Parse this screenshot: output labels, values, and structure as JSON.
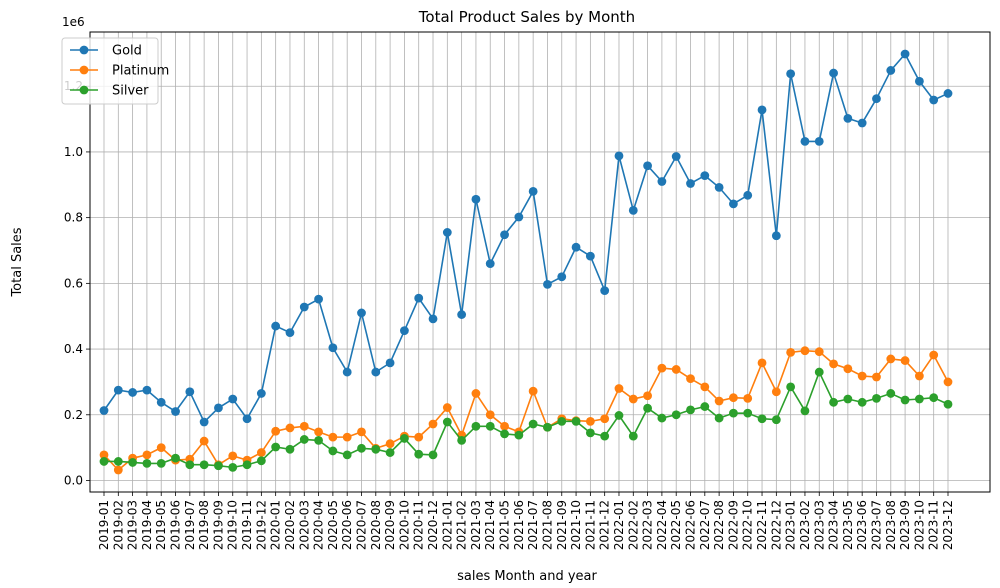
{
  "chart_data": {
    "type": "line",
    "title": "Total Product Sales by Month",
    "xlabel": "sales Month and year",
    "ylabel": "Total Sales",
    "y_scale_label": "1e6",
    "ylim": [
      -0.035,
      1.365
    ],
    "y_ticks": [
      0.0,
      0.2,
      0.4,
      0.6,
      0.8,
      1.0,
      1.2
    ],
    "y_tick_labels": [
      "0.0",
      "0.2",
      "0.4",
      "0.6",
      "0.8",
      "1.0",
      "1.2"
    ],
    "grid": true,
    "legend_position": "top-left",
    "categories": [
      "2019-01",
      "2019-02",
      "2019-03",
      "2019-04",
      "2019-05",
      "2019-06",
      "2019-07",
      "2019-08",
      "2019-09",
      "2019-10",
      "2019-11",
      "2019-12",
      "2020-01",
      "2020-02",
      "2020-03",
      "2020-04",
      "2020-05",
      "2020-06",
      "2020-07",
      "2020-08",
      "2020-09",
      "2020-10",
      "2020-11",
      "2020-12",
      "2021-01",
      "2021-02",
      "2021-03",
      "2021-04",
      "2021-05",
      "2021-06",
      "2021-07",
      "2021-08",
      "2021-09",
      "2021-10",
      "2021-11",
      "2021-12",
      "2022-01",
      "2022-02",
      "2022-03",
      "2022-04",
      "2022-05",
      "2022-06",
      "2022-07",
      "2022-08",
      "2022-09",
      "2022-10",
      "2022-11",
      "2022-12",
      "2023-01",
      "2023-02",
      "2023-03",
      "2023-04",
      "2023-05",
      "2023-06",
      "2023-07",
      "2023-08",
      "2023-09",
      "2023-10",
      "2023-11",
      "2023-12"
    ],
    "series": [
      {
        "name": "Gold",
        "color": "#1f77b4",
        "values": [
          0.213,
          0.275,
          0.268,
          0.275,
          0.238,
          0.21,
          0.27,
          0.178,
          0.221,
          0.248,
          0.188,
          0.265,
          0.47,
          0.45,
          0.528,
          0.552,
          0.404,
          0.33,
          0.51,
          0.33,
          0.358,
          0.456,
          0.555,
          0.492,
          0.755,
          0.505,
          0.856,
          0.66,
          0.748,
          0.802,
          0.88,
          0.597,
          0.62,
          0.71,
          0.683,
          0.578,
          0.988,
          0.822,
          0.958,
          0.91,
          0.986,
          0.904,
          0.928,
          0.892,
          0.842,
          0.868,
          1.128,
          0.745,
          1.238,
          1.032,
          1.032,
          1.24,
          1.102,
          1.088,
          1.162,
          1.248,
          1.298,
          1.215,
          1.158,
          1.178
        ]
      },
      {
        "name": "Platinum",
        "color": "#ff7f0e",
        "values": [
          0.078,
          0.032,
          0.068,
          0.078,
          0.1,
          0.062,
          0.065,
          0.12,
          0.048,
          0.075,
          0.062,
          0.085,
          0.15,
          0.16,
          0.165,
          0.148,
          0.132,
          0.132,
          0.148,
          0.098,
          0.112,
          0.135,
          0.132,
          0.172,
          0.222,
          0.138,
          0.265,
          0.2,
          0.165,
          0.148,
          0.272,
          0.162,
          0.188,
          0.182,
          0.18,
          0.188,
          0.28,
          0.248,
          0.258,
          0.342,
          0.338,
          0.31,
          0.285,
          0.242,
          0.252,
          0.25,
          0.358,
          0.27,
          0.39,
          0.395,
          0.392,
          0.355,
          0.34,
          0.318,
          0.315,
          0.37,
          0.365,
          0.318,
          0.382,
          0.3
        ]
      },
      {
        "name": "Silver",
        "color": "#2ca02c",
        "values": [
          0.058,
          0.058,
          0.055,
          0.052,
          0.052,
          0.068,
          0.048,
          0.048,
          0.045,
          0.04,
          0.048,
          0.06,
          0.102,
          0.095,
          0.125,
          0.122,
          0.09,
          0.078,
          0.098,
          0.095,
          0.085,
          0.128,
          0.08,
          0.078,
          0.178,
          0.122,
          0.165,
          0.165,
          0.142,
          0.138,
          0.172,
          0.162,
          0.18,
          0.18,
          0.145,
          0.135,
          0.198,
          0.135,
          0.22,
          0.19,
          0.2,
          0.215,
          0.225,
          0.19,
          0.205,
          0.205,
          0.188,
          0.185,
          0.285,
          0.212,
          0.33,
          0.238,
          0.248,
          0.238,
          0.25,
          0.265,
          0.245,
          0.248,
          0.252,
          0.232
        ]
      }
    ]
  }
}
